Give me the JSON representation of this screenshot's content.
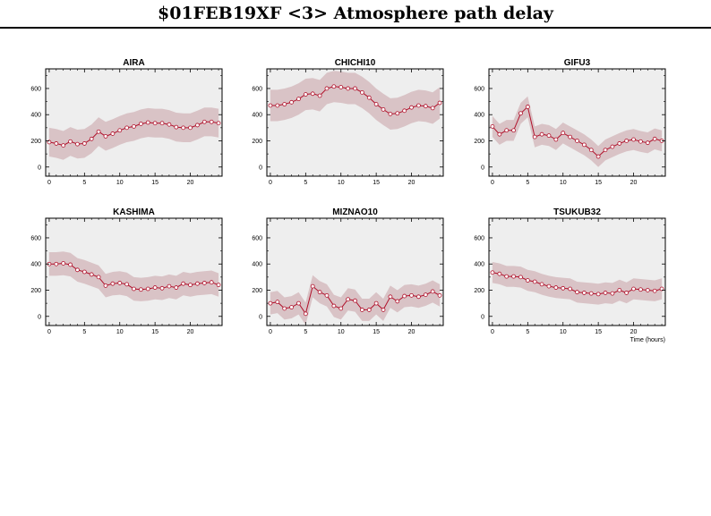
{
  "title": "$01FEB19XF <3>  Atmosphere path delay",
  "colors": {
    "line": "#b0102a",
    "band": "#d9c3c6",
    "panel_bg": "#eeeeee",
    "marker_fill": "#ffffff"
  },
  "chart_data": [
    {
      "type": "line",
      "title": "AIRA",
      "xlabel": "",
      "ylabel": "",
      "xlim": [
        -0.5,
        24.5
      ],
      "ylim": [
        -70,
        750
      ],
      "x_ticks": [
        0,
        5,
        10,
        15,
        20
      ],
      "y_ticks": [
        0,
        200,
        400,
        600
      ],
      "band_halfwidth": 110,
      "x": [
        0,
        1,
        2,
        3,
        4,
        5,
        6,
        7,
        8,
        9,
        10,
        11,
        12,
        13,
        14,
        15,
        16,
        17,
        18,
        19,
        20,
        21,
        22,
        23,
        24
      ],
      "y": [
        190,
        180,
        165,
        195,
        175,
        180,
        215,
        270,
        235,
        255,
        280,
        300,
        310,
        330,
        340,
        335,
        335,
        325,
        305,
        300,
        300,
        320,
        345,
        345,
        335
      ]
    },
    {
      "type": "line",
      "title": "CHICHI10",
      "xlabel": "",
      "ylabel": "",
      "xlim": [
        -0.5,
        24.5
      ],
      "ylim": [
        -70,
        750
      ],
      "x_ticks": [
        0,
        5,
        10,
        15,
        20
      ],
      "y_ticks": [
        0,
        200,
        400,
        600
      ],
      "band_halfwidth": 120,
      "x": [
        0,
        1,
        2,
        3,
        4,
        5,
        6,
        7,
        8,
        9,
        10,
        11,
        12,
        13,
        14,
        15,
        16,
        17,
        18,
        19,
        20,
        21,
        22,
        23,
        24
      ],
      "y": [
        470,
        470,
        480,
        495,
        520,
        555,
        560,
        545,
        600,
        615,
        610,
        600,
        600,
        570,
        530,
        480,
        440,
        405,
        410,
        430,
        455,
        470,
        465,
        450,
        490
      ]
    },
    {
      "type": "line",
      "title": "GIFU3",
      "xlabel": "",
      "ylabel": "",
      "xlim": [
        -0.5,
        24.5
      ],
      "ylim": [
        -70,
        750
      ],
      "x_ticks": [
        0,
        5,
        10,
        15,
        20
      ],
      "y_ticks": [
        0,
        200,
        400,
        600
      ],
      "band_halfwidth": 80,
      "x": [
        0,
        1,
        2,
        3,
        4,
        5,
        6,
        7,
        8,
        9,
        10,
        11,
        12,
        13,
        14,
        15,
        16,
        17,
        18,
        19,
        20,
        21,
        22,
        23,
        24
      ],
      "y": [
        310,
        250,
        280,
        280,
        410,
        460,
        230,
        250,
        240,
        210,
        260,
        230,
        200,
        170,
        130,
        80,
        130,
        155,
        180,
        200,
        210,
        195,
        185,
        215,
        200
      ]
    },
    {
      "type": "line",
      "title": "KASHIMA",
      "xlabel": "",
      "ylabel": "",
      "xlim": [
        -0.5,
        24.5
      ],
      "ylim": [
        -70,
        750
      ],
      "x_ticks": [
        0,
        5,
        10,
        15,
        20
      ],
      "y_ticks": [
        0,
        200,
        400,
        600
      ],
      "band_halfwidth": 90,
      "x": [
        0,
        1,
        2,
        3,
        4,
        5,
        6,
        7,
        8,
        9,
        10,
        11,
        12,
        13,
        14,
        15,
        16,
        17,
        18,
        19,
        20,
        21,
        22,
        23,
        24
      ],
      "y": [
        400,
        400,
        405,
        395,
        355,
        340,
        320,
        300,
        235,
        250,
        255,
        245,
        210,
        205,
        210,
        220,
        215,
        230,
        220,
        250,
        240,
        250,
        255,
        260,
        240
      ]
    },
    {
      "type": "line",
      "title": "MIZNAO10",
      "xlabel": "",
      "ylabel": "",
      "xlim": [
        -0.5,
        24.5
      ],
      "ylim": [
        -70,
        750
      ],
      "x_ticks": [
        0,
        5,
        10,
        15,
        20
      ],
      "y_ticks": [
        0,
        200,
        400,
        600
      ],
      "band_halfwidth": 85,
      "x": [
        0,
        1,
        2,
        3,
        4,
        5,
        6,
        7,
        8,
        9,
        10,
        11,
        12,
        13,
        14,
        15,
        16,
        17,
        18,
        19,
        20,
        21,
        22,
        23,
        24
      ],
      "y": [
        100,
        110,
        60,
        70,
        100,
        20,
        230,
        185,
        160,
        80,
        60,
        130,
        120,
        50,
        50,
        100,
        50,
        150,
        115,
        155,
        160,
        150,
        165,
        190,
        160
      ]
    },
    {
      "type": "line",
      "title": "TSUKUB32",
      "xlabel": "Time (hours)",
      "ylabel": "",
      "xlim": [
        -0.5,
        24.5
      ],
      "ylim": [
        -70,
        750
      ],
      "x_ticks": [
        0,
        5,
        10,
        15,
        20
      ],
      "y_ticks": [
        0,
        200,
        400,
        600
      ],
      "band_halfwidth": 80,
      "x": [
        0,
        1,
        2,
        3,
        4,
        5,
        6,
        7,
        8,
        9,
        10,
        11,
        12,
        13,
        14,
        15,
        16,
        17,
        18,
        19,
        20,
        21,
        22,
        23,
        24
      ],
      "y": [
        335,
        325,
        305,
        305,
        300,
        275,
        265,
        245,
        230,
        220,
        215,
        210,
        185,
        180,
        175,
        170,
        180,
        175,
        200,
        180,
        210,
        205,
        200,
        195,
        210
      ]
    }
  ]
}
